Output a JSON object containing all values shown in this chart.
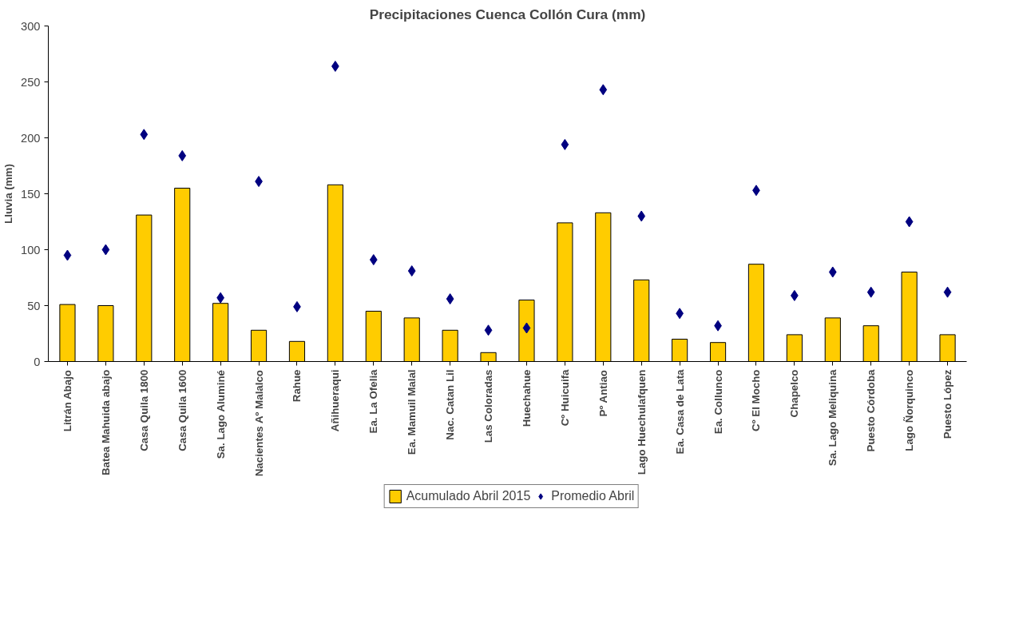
{
  "chart_data": {
    "type": "bar",
    "title": "Precipitaciones Cuenca Collón Cura (mm)",
    "ylabel": "Lluvia (mm)",
    "categories": [
      "Litrán Abajo",
      "Batea Mahuida abajo",
      "Casa Quila 1800",
      "Casa Quila 1600",
      "Sa. Lago Aluminé",
      "Nacientes Aº Malalco",
      "Rahue",
      "Añihueraqui",
      "Ea. La Ofelia",
      "Ea. Mamuil Malal",
      "Nac. Catan Lil",
      "Las Coloradas",
      "Huechahue",
      "Cº Huicuifa",
      "Pº Antiao",
      "Lago Huechulafquen",
      "Ea. Casa de Lata",
      "Ea. Collunco",
      "Cº El Mocho",
      "Chapelco",
      "Sa. Lago Meliquina",
      "Puesto Córdoba",
      "Lago Ñorquinco",
      "Puesto López"
    ],
    "series": [
      {
        "name": "Acumulado Abril 2015",
        "color": "#ffcc00",
        "values": [
          51,
          50,
          131,
          155,
          52,
          28,
          18,
          158,
          45,
          39,
          28,
          8,
          55,
          124,
          133,
          73,
          20,
          17,
          87,
          24,
          39,
          32,
          80,
          24
        ]
      },
      {
        "name": "Promedio Abril",
        "type": "scatter",
        "marker": "diamond",
        "color": "#000080",
        "values": [
          95,
          100,
          203,
          184,
          57,
          161,
          49,
          264,
          91,
          81,
          56,
          28,
          30,
          194,
          243,
          130,
          43,
          32,
          153,
          59,
          80,
          62,
          125,
          62
        ]
      }
    ],
    "ylim": [
      0,
      300
    ],
    "yticks": [
      0,
      50,
      100,
      150,
      200,
      250,
      300
    ],
    "grid": false,
    "legend": "bottom"
  }
}
